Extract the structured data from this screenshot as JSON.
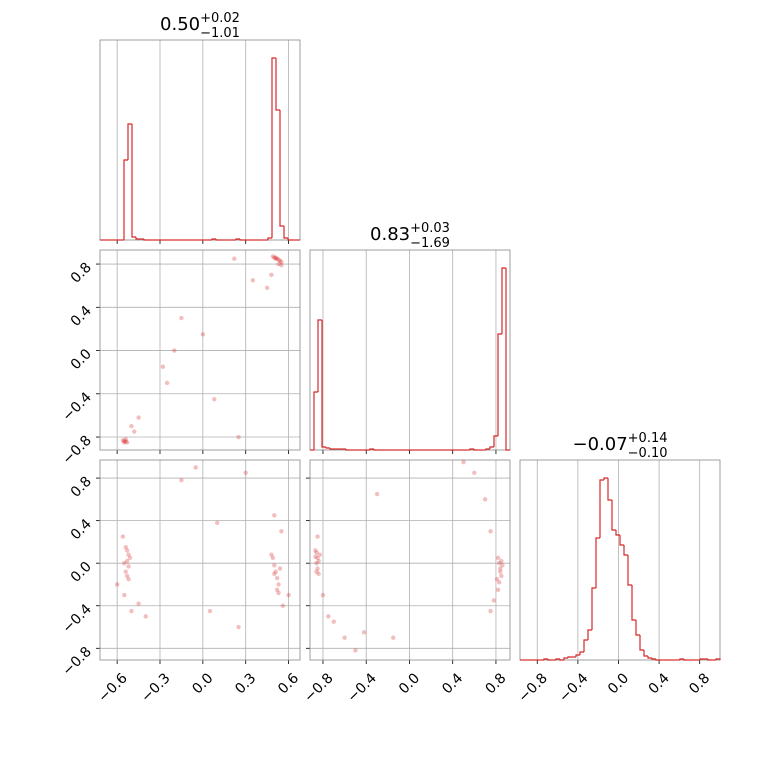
{
  "chart_data": [
    {
      "type": "hist",
      "title": "0.50",
      "title_upper": "+0.02",
      "title_lower": "−1.01",
      "color": "#d62728",
      "grid": true,
      "xlim": [
        -0.72,
        0.68
      ],
      "ylim": [
        0,
        200
      ],
      "xticks": [
        -0.6,
        -0.3,
        0,
        0.3,
        0.6
      ],
      "bins": [
        -0.72,
        -0.692,
        -0.664,
        -0.636,
        -0.608,
        -0.58,
        -0.552,
        -0.524,
        -0.496,
        -0.468,
        -0.44,
        -0.412,
        -0.384,
        -0.356,
        -0.328,
        -0.3,
        -0.272,
        -0.244,
        -0.216,
        -0.188,
        -0.16,
        -0.132,
        -0.104,
        -0.076,
        -0.048,
        -0.02,
        0.008,
        0.036,
        0.064,
        0.092,
        0.12,
        0.148,
        0.176,
        0.204,
        0.232,
        0.26,
        0.288,
        0.316,
        0.344,
        0.372,
        0.4,
        0.428,
        0.456,
        0.484,
        0.512,
        0.54,
        0.568,
        0.596,
        0.624,
        0.652,
        0.68
      ],
      "counts": [
        0,
        0,
        0,
        0,
        0,
        0,
        80,
        116,
        3,
        1,
        1,
        0,
        0,
        0,
        0,
        0,
        0,
        0,
        0,
        0,
        0,
        0,
        0,
        0,
        0,
        0,
        0,
        0,
        1,
        0,
        0,
        0,
        0,
        0,
        1,
        0,
        0,
        0,
        0,
        0,
        0,
        0,
        2,
        182,
        130,
        14,
        2,
        0,
        0,
        0
      ]
    },
    {
      "type": "scatter",
      "color": "#d62728",
      "grid": true,
      "xlim": [
        -0.72,
        0.68
      ],
      "ylim": [
        -0.92,
        0.93
      ],
      "xticks": [
        -0.6,
        -0.3,
        0,
        0.3,
        0.6
      ],
      "yticks": [
        {
          "value": -0.8,
          "label": "−0.8"
        },
        {
          "value": -0.4,
          "label": "−0.4"
        },
        {
          "value": 0,
          "label": "0.0"
        },
        0.4,
        0.8
      ],
      "x": [
        0.49,
        0.5,
        0.51,
        0.52,
        0.53,
        0.54,
        0.55,
        0.53,
        0.51,
        0.55,
        -0.56,
        -0.55,
        -0.54,
        -0.53,
        -0.55,
        -0.54,
        -0.5,
        -0.45,
        -0.48,
        -0.28,
        -0.2,
        -0.15,
        0.0,
        0.08,
        0.25,
        0.35,
        0.45,
        0.22,
        0.48,
        -0.25
      ],
      "y": [
        0.87,
        0.86,
        0.85,
        0.85,
        0.84,
        0.83,
        0.82,
        0.8,
        0.86,
        0.79,
        -0.83,
        -0.84,
        -0.84,
        -0.85,
        -0.85,
        -0.82,
        -0.7,
        -0.62,
        -0.75,
        -0.15,
        0.0,
        0.3,
        0.15,
        -0.45,
        -0.8,
        0.65,
        0.58,
        0.85,
        0.7,
        -0.3
      ]
    },
    {
      "type": "hist",
      "title": "0.83",
      "title_upper": "+0.03",
      "title_lower": "−1.69",
      "color": "#d62728",
      "grid": true,
      "xlim": [
        -0.92,
        0.93
      ],
      "ylim": [
        0,
        200
      ],
      "xticks": [
        -0.8,
        -0.4,
        0,
        0.4,
        0.8
      ],
      "bins": [
        -0.92,
        -0.883,
        -0.846,
        -0.809,
        -0.772,
        -0.735,
        -0.698,
        -0.661,
        -0.624,
        -0.587,
        -0.55,
        -0.513,
        -0.476,
        -0.439,
        -0.402,
        -0.365,
        -0.328,
        -0.291,
        -0.254,
        -0.217,
        -0.18,
        -0.143,
        -0.106,
        -0.069,
        -0.032,
        0.005,
        0.042,
        0.079,
        0.116,
        0.153,
        0.19,
        0.227,
        0.264,
        0.301,
        0.338,
        0.375,
        0.412,
        0.449,
        0.486,
        0.523,
        0.56,
        0.597,
        0.634,
        0.671,
        0.708,
        0.745,
        0.782,
        0.819,
        0.856,
        0.893,
        0.93
      ],
      "counts": [
        0,
        58,
        130,
        3,
        2,
        1,
        1,
        1,
        1,
        0,
        0,
        0,
        0,
        0,
        0,
        1,
        0,
        0,
        0,
        0,
        0,
        0,
        0,
        0,
        0,
        0,
        0,
        0,
        0,
        0,
        0,
        0,
        0,
        0,
        0,
        0,
        0,
        0,
        0,
        0,
        1,
        0,
        0,
        0,
        1,
        3,
        14,
        116,
        182,
        0
      ]
    },
    {
      "type": "scatter",
      "color": "#d62728",
      "grid": true,
      "xlim": [
        -0.72,
        0.68
      ],
      "ylim": [
        -0.91,
        0.97
      ],
      "xticks": [
        {
          "value": -0.6,
          "label": "−0.6"
        },
        {
          "value": -0.3,
          "label": "−0.3"
        },
        {
          "value": 0,
          "label": "0.0"
        },
        0.3,
        0.6
      ],
      "yticks": [
        {
          "value": -0.8,
          "label": "−0.8"
        },
        {
          "value": -0.4,
          "label": "−0.4"
        },
        {
          "value": 0,
          "label": "0.0"
        },
        0.4,
        0.8
      ],
      "x": [
        -0.53,
        -0.52,
        -0.53,
        -0.52,
        -0.54,
        -0.53,
        -0.51,
        -0.55,
        -0.52,
        -0.54,
        0.49,
        0.5,
        0.51,
        0.52,
        0.53,
        0.52,
        0.5,
        0.54,
        0.48,
        0.53,
        -0.55,
        -0.5,
        -0.45,
        -0.4,
        -0.56,
        0.55,
        0.56,
        0.5,
        0.3,
        -0.15,
        0.05,
        0.25,
        -0.05,
        0.1,
        -0.6,
        0.6
      ],
      "y": [
        0.12,
        0.08,
        0.02,
        -0.03,
        -0.08,
        -0.12,
        0.05,
        0.0,
        -0.15,
        0.15,
        0.05,
        -0.02,
        -0.08,
        -0.14,
        -0.2,
        -0.25,
        -0.1,
        -0.05,
        0.08,
        -0.28,
        -0.3,
        -0.45,
        -0.38,
        -0.5,
        0.25,
        0.3,
        -0.4,
        0.45,
        0.85,
        0.78,
        -0.45,
        -0.6,
        0.9,
        0.38,
        -0.2,
        -0.3
      ]
    },
    {
      "type": "scatter",
      "color": "#d62728",
      "grid": true,
      "xlim": [
        -0.92,
        0.93
      ],
      "ylim": [
        -0.91,
        0.97
      ],
      "xticks": [
        {
          "value": -0.8,
          "label": "−0.8"
        },
        {
          "value": -0.4,
          "label": "−0.4"
        },
        {
          "value": 0,
          "label": "0.0"
        },
        0.4,
        0.8
      ],
      "yticks": [
        -0.8,
        -0.4,
        0,
        0.4,
        0.8
      ],
      "x": [
        -0.86,
        -0.85,
        -0.86,
        -0.85,
        -0.84,
        -0.87,
        -0.84,
        -0.86,
        -0.87,
        -0.83,
        0.82,
        0.83,
        0.84,
        0.85,
        0.83,
        0.82,
        0.84,
        0.86,
        0.81,
        0.85,
        -0.8,
        -0.75,
        -0.7,
        -0.6,
        -0.5,
        -0.85,
        0.78,
        0.75,
        0.7,
        0.6,
        0.5,
        -0.3,
        -0.15,
        0.75,
        -0.42
      ],
      "y": [
        0.1,
        0.05,
        0.0,
        -0.05,
        -0.1,
        0.12,
        0.02,
        -0.08,
        0.06,
        0.08,
        0.05,
        0.0,
        -0.05,
        -0.12,
        -0.18,
        -0.25,
        -0.08,
        -0.02,
        -0.15,
        0.02,
        -0.3,
        -0.5,
        -0.55,
        -0.7,
        -0.82,
        0.25,
        -0.35,
        -0.45,
        0.6,
        0.85,
        0.95,
        0.65,
        -0.7,
        0.3,
        -0.65
      ]
    },
    {
      "type": "hist",
      "title": "−0.07",
      "title_upper": "+0.14",
      "title_lower": "−0.10",
      "color": "#d62728",
      "grid": true,
      "xlim": [
        -0.97,
        1.0
      ],
      "ylim": [
        0,
        200
      ],
      "xticks": [
        {
          "value": -0.8,
          "label": "−0.8"
        },
        {
          "value": -0.4,
          "label": "−0.4"
        },
        {
          "value": 0,
          "label": "0.0"
        },
        0.4,
        0.8
      ],
      "bins": [
        -0.97,
        -0.9306,
        -0.8912,
        -0.8518,
        -0.8124,
        -0.773,
        -0.7336,
        -0.6942,
        -0.6548,
        -0.6154,
        -0.576,
        -0.5366,
        -0.4972,
        -0.4578,
        -0.4184,
        -0.379,
        -0.3396,
        -0.3002,
        -0.2608,
        -0.2214,
        -0.182,
        -0.1426,
        -0.1032,
        -0.0638,
        -0.0244,
        0.015,
        0.0544,
        0.0938,
        0.1332,
        0.1726,
        0.212,
        0.2514,
        0.2908,
        0.3302,
        0.3696,
        0.409,
        0.4484,
        0.4878,
        0.5272,
        0.5666,
        0.606,
        0.6454,
        0.6848,
        0.7242,
        0.7636,
        0.803,
        0.8424,
        0.8818,
        0.9212,
        0.9606,
        1.0
      ],
      "counts": [
        0,
        0,
        0,
        0,
        0,
        0,
        1,
        0,
        0,
        1,
        0,
        2,
        3,
        3,
        5,
        8,
        20,
        30,
        72,
        122,
        180,
        182,
        160,
        130,
        125,
        115,
        105,
        75,
        40,
        25,
        10,
        4,
        2,
        1,
        0,
        0,
        0,
        0,
        0,
        0,
        1,
        0,
        0,
        0,
        0,
        1,
        1,
        0,
        0,
        1
      ]
    }
  ]
}
